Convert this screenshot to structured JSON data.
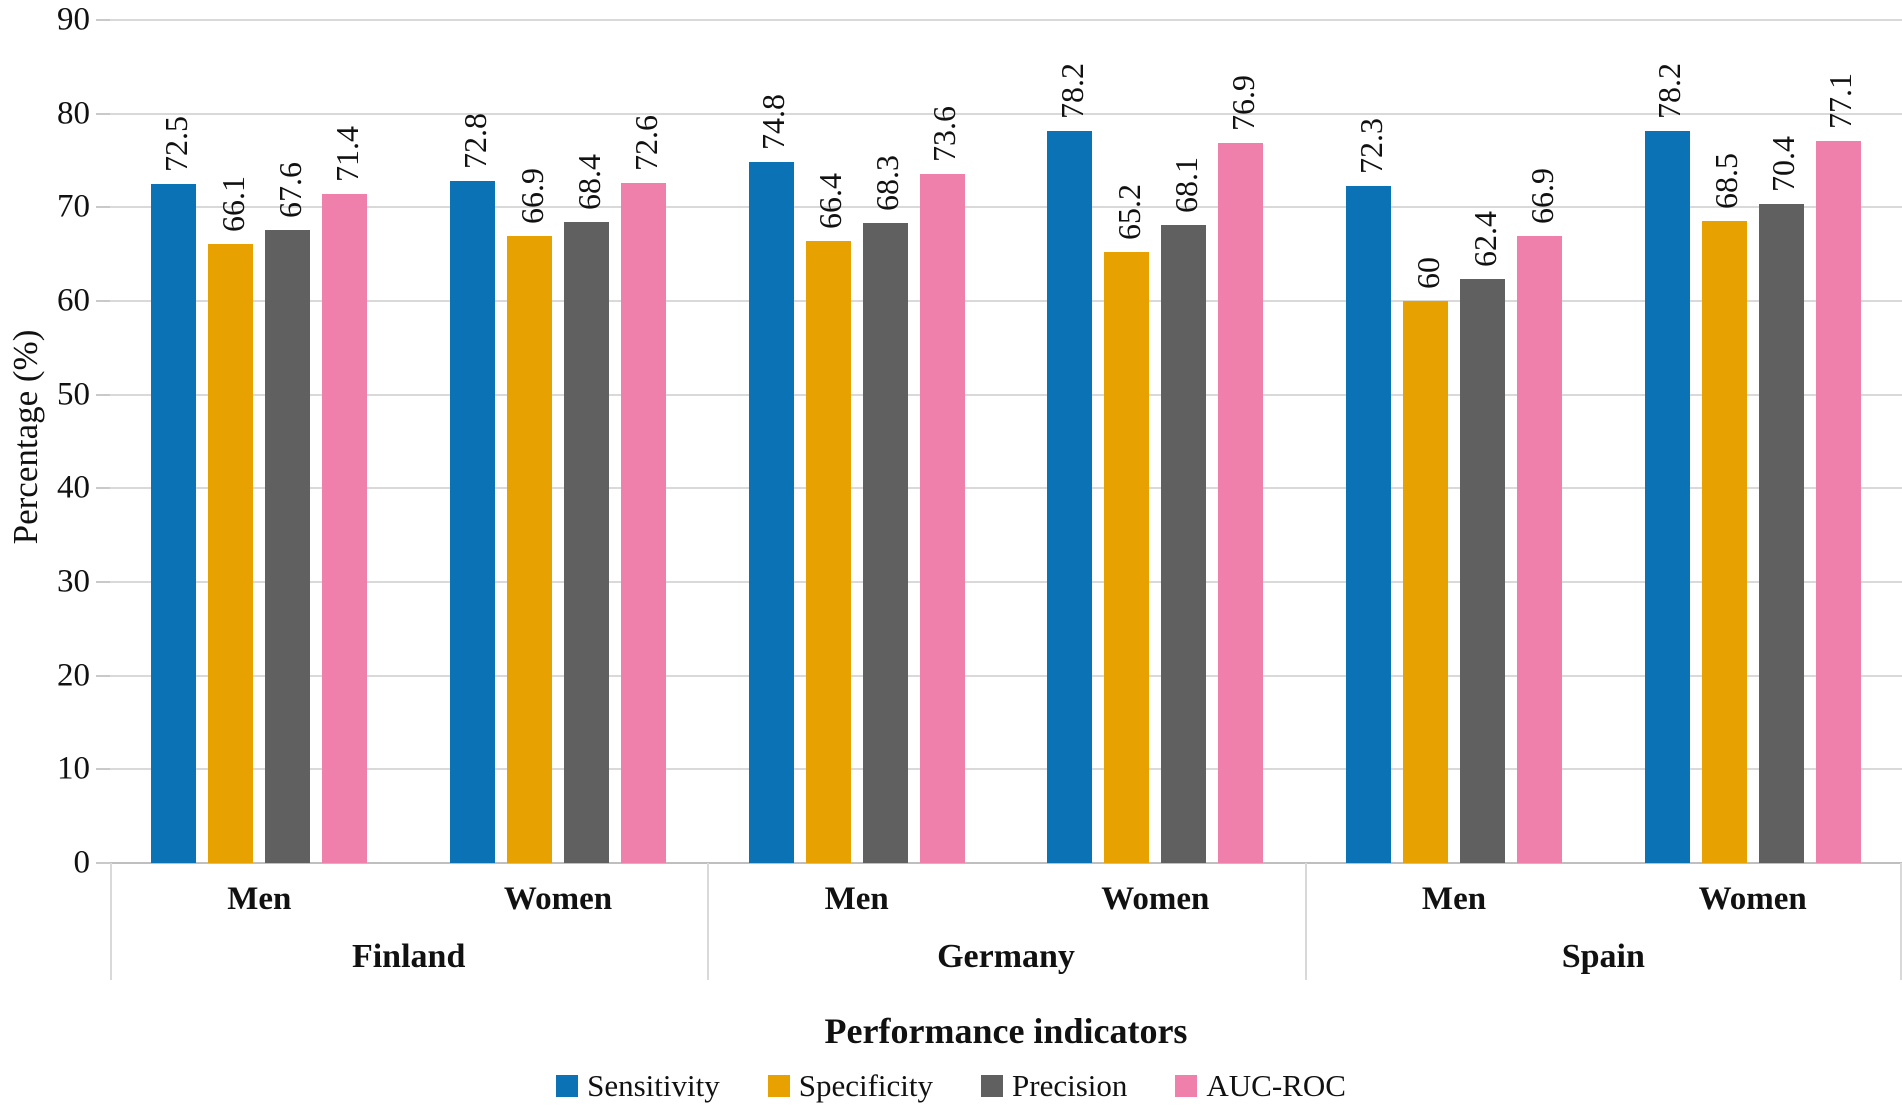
{
  "chart_data": {
    "type": "bar",
    "title": "",
    "xlabel": "Performance indicators",
    "ylabel": "Percentage (%)",
    "ylim": [
      0,
      90
    ],
    "yticks": [
      "0",
      "10",
      "20",
      "30",
      "40",
      "50",
      "60",
      "70",
      "80",
      "90"
    ],
    "grid": true,
    "legend_position": "bottom",
    "series": [
      {
        "name": "Sensitivity",
        "color": "#0b73b5"
      },
      {
        "name": "Specificity",
        "color": "#e7a202"
      },
      {
        "name": "Precision",
        "color": "#606060"
      },
      {
        "name": "AUC-ROC",
        "color": "#ef80ab"
      }
    ],
    "groups": [
      {
        "label": "Finland",
        "subgroups": [
          {
            "label": "Men",
            "values": [
              72.5,
              66.1,
              67.6,
              71.4
            ],
            "labels": [
              "72.5",
              "66.1",
              "67.6",
              "71.4"
            ]
          },
          {
            "label": "Women",
            "values": [
              72.8,
              66.9,
              68.4,
              72.6
            ],
            "labels": [
              "72.8",
              "66.9",
              "68.4",
              "72.6"
            ]
          }
        ]
      },
      {
        "label": "Germany",
        "subgroups": [
          {
            "label": "Men",
            "values": [
              74.8,
              66.4,
              68.3,
              73.6
            ],
            "labels": [
              "74.8",
              "66.4",
              "68.3",
              "73.6"
            ]
          },
          {
            "label": "Women",
            "values": [
              78.2,
              65.2,
              68.1,
              76.9
            ],
            "labels": [
              "78.2",
              "65.2",
              "68.1",
              "76.9"
            ]
          }
        ]
      },
      {
        "label": "Spain",
        "subgroups": [
          {
            "label": "Men",
            "values": [
              72.3,
              60,
              62.4,
              66.9
            ],
            "labels": [
              "72.3",
              "60",
              "62.4",
              "66.9"
            ]
          },
          {
            "label": "Women",
            "values": [
              78.2,
              68.5,
              70.4,
              77.1
            ],
            "labels": [
              "78.2",
              "68.5",
              "70.4",
              "77.1"
            ]
          }
        ]
      }
    ]
  },
  "colors": {
    "gridline": "#d9d9d9",
    "baseline": "#bfbfbf",
    "divider": "#d9d9d9",
    "text": "#111111"
  }
}
